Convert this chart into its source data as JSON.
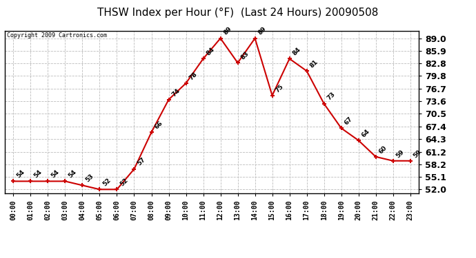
{
  "title": "THSW Index per Hour (°F)  (Last 24 Hours) 20090508",
  "copyright": "Copyright 2009 Cartronics.com",
  "hours": [
    0,
    1,
    2,
    3,
    4,
    5,
    6,
    7,
    8,
    9,
    10,
    11,
    12,
    13,
    14,
    15,
    16,
    17,
    18,
    19,
    20,
    21,
    22,
    23
  ],
  "values": [
    54,
    54,
    54,
    54,
    53,
    52,
    52,
    57,
    66,
    74,
    78,
    84,
    89,
    83,
    89,
    75,
    84,
    81,
    73,
    67,
    64,
    60,
    59,
    59
  ],
  "x_labels": [
    "00:00",
    "01:00",
    "02:00",
    "03:00",
    "04:00",
    "05:00",
    "06:00",
    "07:00",
    "08:00",
    "09:00",
    "10:00",
    "11:00",
    "12:00",
    "13:00",
    "14:00",
    "15:00",
    "16:00",
    "17:00",
    "18:00",
    "19:00",
    "20:00",
    "21:00",
    "22:00",
    "23:00"
  ],
  "y_ticks": [
    52.0,
    55.1,
    58.2,
    61.2,
    64.3,
    67.4,
    70.5,
    73.6,
    76.7,
    79.8,
    82.8,
    85.9,
    89.0
  ],
  "ylim": [
    51.0,
    90.8
  ],
  "line_color": "#cc0000",
  "marker_color": "#cc0000",
  "bg_color": "#ffffff",
  "grid_color": "#bbbbbb",
  "title_fontsize": 11,
  "tick_fontsize": 7,
  "annotation_fontsize": 6.5,
  "ytick_fontsize": 9,
  "copyright_fontsize": 6
}
